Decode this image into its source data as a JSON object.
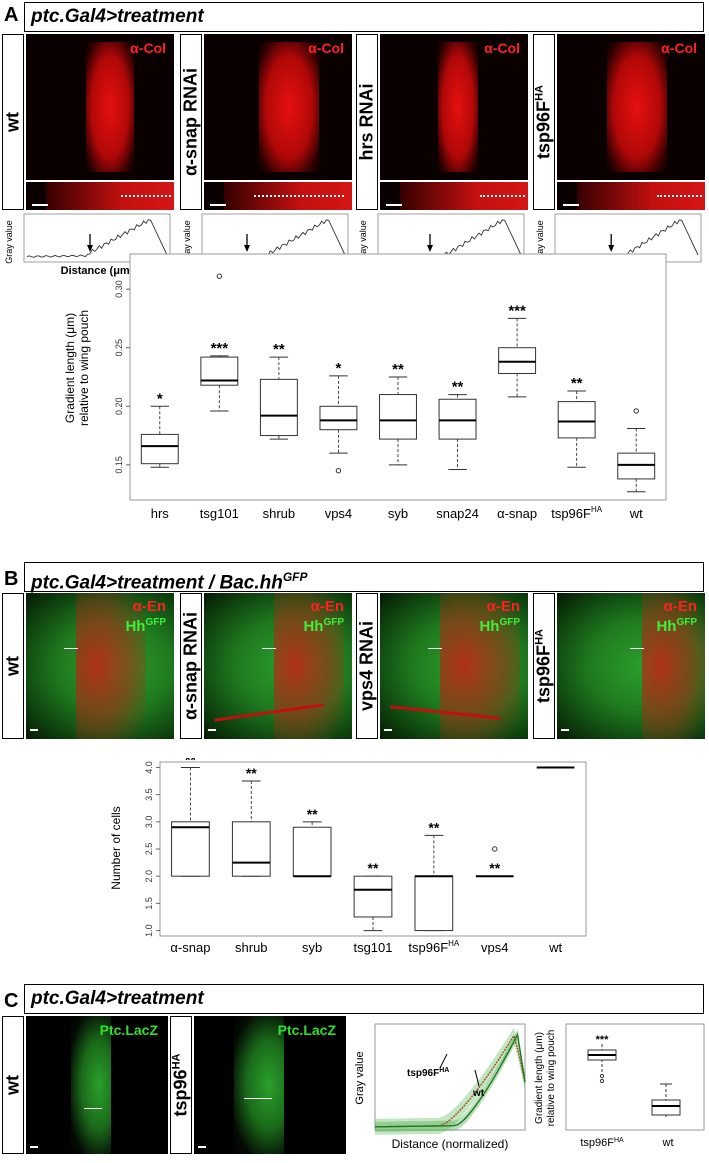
{
  "panelA": {
    "letter": "A",
    "title": "ptc.Gal4>treatment",
    "images": [
      {
        "label": "wt",
        "stain": "α-Col"
      },
      {
        "label": "α-snap RNAi",
        "stain": "α-Col"
      },
      {
        "label": "hrs RNAi",
        "stain": "α-Col"
      },
      {
        "label": "tsp96F",
        "label_sup": "HA",
        "stain": "α-Col"
      }
    ],
    "profile_ylabel": "Gray value",
    "profile_xlabel": "Distance (μm)",
    "chart_data": {
      "type": "box",
      "ylabel": "Gradient length (μm) relative to wing pouch",
      "ylabel_line1": "Gradient length (μm)",
      "ylabel_line2": "relative to wing pouch",
      "ylim": [
        0.12,
        0.33
      ],
      "yticks": [
        "0.15",
        "0.20",
        "0.25",
        "0.30"
      ],
      "categories": [
        "hrs",
        "tsg101",
        "shrub",
        "vps4",
        "syb",
        "snap24",
        "α-snap",
        "tsp96F",
        "wt"
      ],
      "sup": [
        "",
        "",
        "",
        "",
        "",
        "",
        "",
        "HA",
        ""
      ],
      "significance": [
        "*",
        "***",
        "**",
        "*",
        "**",
        "**",
        "***",
        "**",
        ""
      ],
      "boxes": [
        {
          "min": 0.148,
          "q1": 0.151,
          "median": 0.166,
          "q3": 0.176,
          "max": 0.2,
          "outliers": []
        },
        {
          "min": 0.196,
          "q1": 0.218,
          "median": 0.222,
          "q3": 0.242,
          "max": 0.243,
          "outliers": [
            0.311
          ]
        },
        {
          "min": 0.172,
          "q1": 0.175,
          "median": 0.192,
          "q3": 0.223,
          "max": 0.242,
          "outliers": []
        },
        {
          "min": 0.16,
          "q1": 0.18,
          "median": 0.188,
          "q3": 0.2,
          "max": 0.226,
          "outliers": [
            0.145
          ]
        },
        {
          "min": 0.15,
          "q1": 0.172,
          "median": 0.188,
          "q3": 0.21,
          "max": 0.225,
          "outliers": []
        },
        {
          "min": 0.146,
          "q1": 0.172,
          "median": 0.188,
          "q3": 0.206,
          "max": 0.21,
          "outliers": []
        },
        {
          "min": 0.208,
          "q1": 0.228,
          "median": 0.238,
          "q3": 0.25,
          "max": 0.275,
          "outliers": []
        },
        {
          "min": 0.148,
          "q1": 0.173,
          "median": 0.187,
          "q3": 0.204,
          "max": 0.213,
          "outliers": []
        },
        {
          "min": 0.127,
          "q1": 0.138,
          "median": 0.15,
          "q3": 0.16,
          "max": 0.181,
          "outliers": [
            0.196
          ]
        }
      ]
    }
  },
  "panelB": {
    "letter": "B",
    "title": "ptc.Gal4>treatment / Bac.hh",
    "title_sup": "GFP",
    "images": [
      {
        "label": "wt",
        "stain1": "α-En",
        "stain2": "Hh",
        "stain2_sup": "GFP"
      },
      {
        "label": "α-snap RNAi",
        "stain1": "α-En",
        "stain2": "Hh",
        "stain2_sup": "GFP"
      },
      {
        "label": "vps4 RNAi",
        "stain1": "α-En",
        "stain2": "Hh",
        "stain2_sup": "GFP"
      },
      {
        "label": "tsp96F",
        "label_sup": "HA",
        "stain1": "α-En",
        "stain2": "Hh",
        "stain2_sup": "GFP"
      }
    ],
    "chart_data": {
      "type": "box",
      "ylabel": "Number of cells",
      "ylim": [
        0.9,
        4.1
      ],
      "yticks": [
        "1.0",
        "1.5",
        "2.0",
        "2.5",
        "3.0",
        "3.5",
        "4.0"
      ],
      "categories": [
        "α-snap",
        "shrub",
        "syb",
        "tsg101",
        "tsp96F",
        "vps4",
        "wt"
      ],
      "sup": [
        "",
        "",
        "",
        "",
        "HA",
        "",
        ""
      ],
      "significance": [
        "**",
        "**",
        "**",
        "**",
        "**",
        "**",
        ""
      ],
      "boxes": [
        {
          "min": 2.0,
          "q1": 2.0,
          "median": 2.9,
          "q3": 3.0,
          "max": 4.0,
          "outliers": []
        },
        {
          "min": 2.0,
          "q1": 2.0,
          "median": 2.25,
          "q3": 3.0,
          "max": 3.75,
          "outliers": []
        },
        {
          "min": 2.0,
          "q1": 2.0,
          "median": 2.0,
          "q3": 2.9,
          "max": 3.0,
          "outliers": []
        },
        {
          "min": 1.0,
          "q1": 1.25,
          "median": 1.75,
          "q3": 2.0,
          "max": 2.0,
          "outliers": []
        },
        {
          "min": 1.0,
          "q1": 1.0,
          "median": 2.0,
          "q3": 2.0,
          "max": 2.75,
          "outliers": []
        },
        {
          "min": 2.0,
          "q1": 2.0,
          "median": 2.0,
          "q3": 2.0,
          "max": 2.0,
          "outliers": [
            2.5
          ]
        },
        {
          "min": 4.0,
          "q1": 4.0,
          "median": 4.0,
          "q3": 4.0,
          "max": 4.0,
          "outliers": []
        }
      ]
    }
  },
  "panelC": {
    "letter": "C",
    "title": "ptc.Gal4>treatment",
    "images": [
      {
        "label": "wt",
        "stain": "Ptc.LacZ"
      },
      {
        "label": "tsp96",
        "label_sup": "HA",
        "stain": "Ptc.LacZ"
      }
    ],
    "line_chart": {
      "ylabel": "Gray value",
      "xlabel": "Distance (normalized)",
      "series_labels": [
        {
          "name": "tsp96F",
          "sup": "HA"
        },
        {
          "name": "wt",
          "sup": ""
        }
      ]
    },
    "chart_data": {
      "type": "box",
      "ylabel_line1": "Gradient length (μm)",
      "ylabel_line2": "relative to wing pouch",
      "categories": [
        "tsp96F",
        "wt"
      ],
      "sup": [
        "HA",
        ""
      ],
      "significance": [
        "***",
        ""
      ]
    }
  }
}
